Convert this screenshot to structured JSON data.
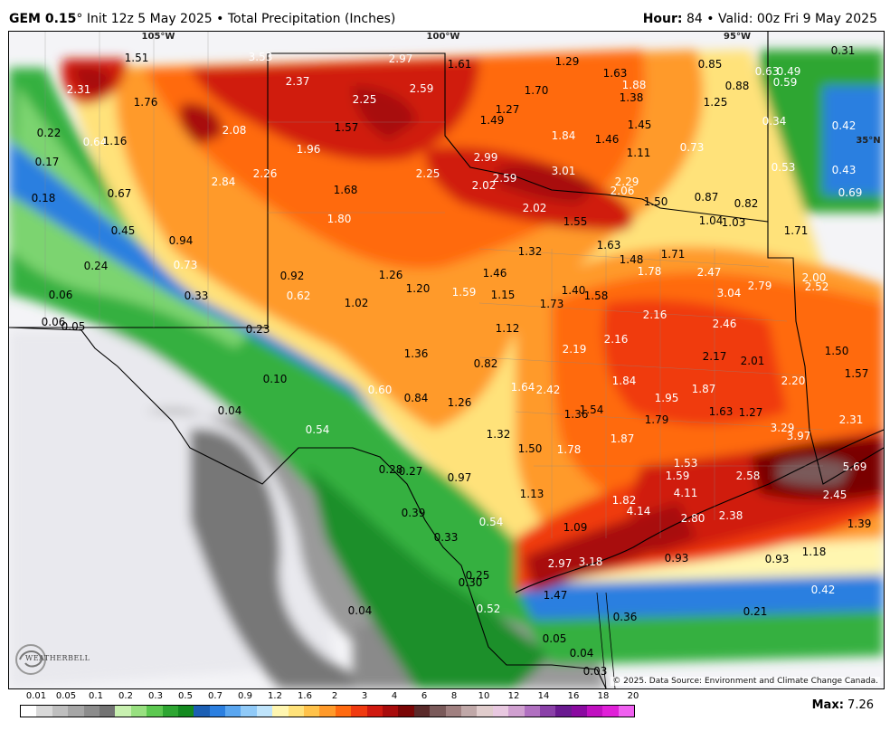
{
  "header": {
    "model": "GEM 0.15",
    "model_rest": "° Init 12z 5 May 2025 • Total Precipitation (Inches)",
    "hour_label": "Hour:",
    "hour_value": "84",
    "valid_label": "• Valid:",
    "valid_value": "00z Fri 9 May 2025"
  },
  "map": {
    "coord_labels": [
      "105°W",
      "100°W",
      "95°W",
      "35°N"
    ],
    "values": [
      "1.51",
      "3.53",
      "2.97",
      "1.61",
      "1.29",
      "1.63",
      "0.85",
      "0.31",
      "2.31",
      "1.76",
      "2.37",
      "2.25",
      "2.59",
      "1.70",
      "1.88",
      "1.38",
      "0.88",
      "0.63",
      "0.49",
      "0.59",
      "2.08",
      "1.57",
      "1.27",
      "1.25",
      "0.22",
      "0.64",
      "1.16",
      "1.49",
      "1.45",
      "0.34",
      "0.42",
      "1.84",
      "1.46",
      "1.96",
      "0.73",
      "0.17",
      "2.26",
      "2.99",
      "3.01",
      "1.11",
      "0.53",
      "0.43",
      "2.84",
      "2.25",
      "2.59",
      "2.29",
      "0.18",
      "0.67",
      "1.68",
      "2.02",
      "2.06",
      "1.50",
      "0.87",
      "0.82",
      "0.69",
      "1.80",
      "2.02",
      "1.55",
      "1.04",
      "1.03",
      "0.45",
      "0.94",
      "1.71",
      "1.63",
      "1.32",
      "0.24",
      "0.73",
      "1.48",
      "1.71",
      "2.47",
      "2.00",
      "0.92",
      "1.26",
      "1.46",
      "1.78",
      "3.04",
      "2.79",
      "2.52",
      "0.06",
      "0.33",
      "0.62",
      "1.20",
      "1.59",
      "1.15",
      "1.40",
      "1.58",
      "1.02",
      "1.73",
      "0.06",
      "0.05",
      "0.23",
      "2.16",
      "1.12",
      "2.46",
      "2.19",
      "2.16",
      "1.36",
      "1.50",
      "0.82",
      "2.17",
      "2.01",
      "0.10",
      "1.57",
      "1.64",
      "2.42",
      "1.84",
      "0.60",
      "0.84",
      "1.26",
      "1.95",
      "1.87",
      "2.20",
      "0.04",
      "1.36",
      "1.54",
      "1.79",
      "1.63",
      "1.27",
      "2.31",
      "1.32",
      "3.29",
      "0.54",
      "3.97",
      "1.87",
      "1.50",
      "1.78",
      "1.53",
      "0.28",
      "0.27",
      "0.97",
      "1.59",
      "2.58",
      "5.69",
      "1.13",
      "4.11",
      "1.82",
      "2.45",
      "0.39",
      "0.54",
      "4.14",
      "2.80",
      "2.38",
      "1.09",
      "1.39",
      "0.33",
      "2.97",
      "3.18",
      "1.18",
      "0.25",
      "0.93",
      "0.93",
      "0.30",
      "1.47",
      "0.42",
      "0.04",
      "0.52",
      "0.21",
      "0.36",
      "0.05",
      "0.04",
      "0.03"
    ],
    "copyright": "© 2025. Data Source: Environment and Climate Change Canada.",
    "logo_text": "WEATHERBELL"
  },
  "legend": {
    "ticks": [
      "0.01",
      "0.05",
      "0.1",
      "0.2",
      "0.3",
      "0.5",
      "0.7",
      "0.9",
      "1.2",
      "1.6",
      "2",
      "3",
      "4",
      "6",
      "8",
      "10",
      "12",
      "14",
      "16",
      "18",
      "20"
    ],
    "colors": [
      "#ffffff",
      "#d9d9d9",
      "#bfbfbf",
      "#a6a6a6",
      "#8c8c8c",
      "#737373",
      "#c8f0b0",
      "#98e080",
      "#5cc850",
      "#2ea632",
      "#148a20",
      "#1c5fb4",
      "#2b7fe0",
      "#5aa6f0",
      "#90caf8",
      "#bfe4fb",
      "#fff6b0",
      "#ffe27a",
      "#ffc24a",
      "#ff9a2a",
      "#ff6a10",
      "#f03a10",
      "#d01a10",
      "#a80c0c",
      "#7a0606",
      "#5a2a2a",
      "#7a5a5a",
      "#a08080",
      "#c0a8a8",
      "#e0cccc",
      "#e8c8e0",
      "#d0a0d0",
      "#b070c0",
      "#8a40a8",
      "#6a1a90",
      "#8a0aa0",
      "#c010c0",
      "#e020d8",
      "#f060f0"
    ],
    "max_label": "Max:",
    "max_value": "7.26"
  }
}
